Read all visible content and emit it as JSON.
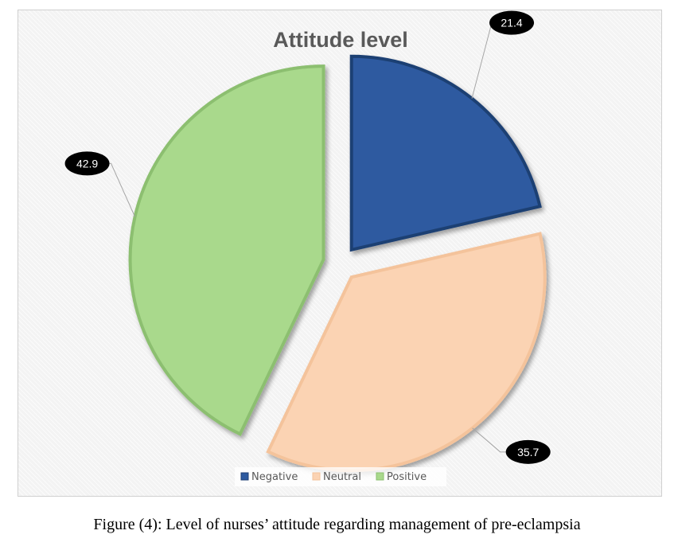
{
  "chart_data": {
    "type": "pie",
    "title": "Attitude level",
    "categories": [
      "Negative",
      "Neutral",
      "Positive"
    ],
    "values": [
      21.4,
      35.7,
      42.9
    ],
    "colors": [
      "#2e5aa0",
      "#fbd3b3",
      "#a9d98c"
    ],
    "edge_colors": [
      "#1f3f73",
      "#f4c39b",
      "#8cbf70"
    ],
    "legend_position": "bottom",
    "data_labels": [
      "21.4",
      "35.7",
      "42.9"
    ],
    "exploded": true
  },
  "caption": "Figure (4): Level of nurses’ attitude regarding management of pre-eclampsia"
}
